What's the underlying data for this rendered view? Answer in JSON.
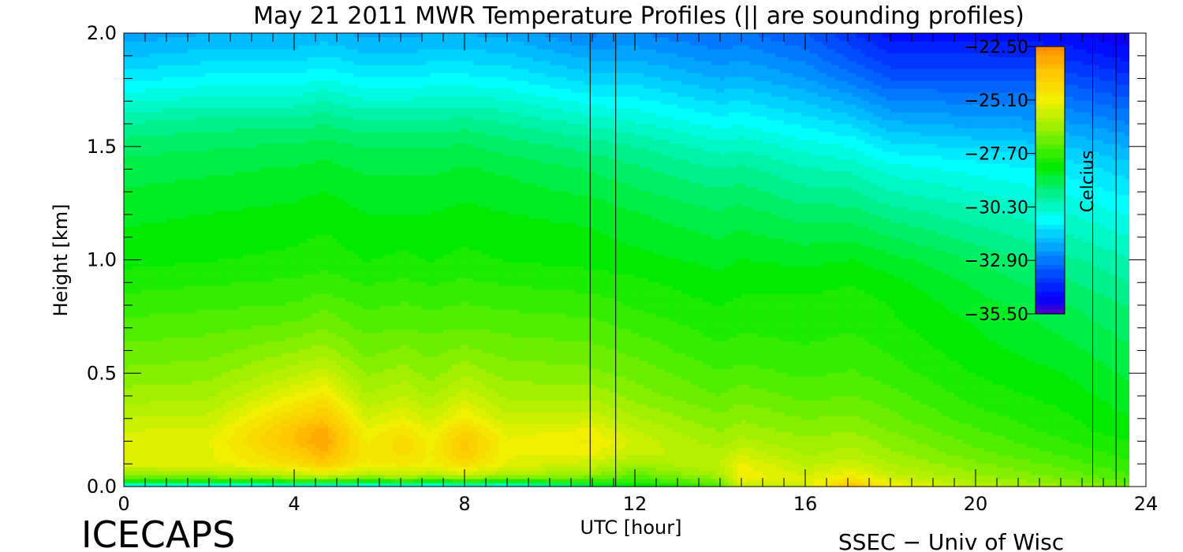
{
  "chart_data": {
    "type": "heatmap",
    "title": "May 21 2011 MWR Temperature Profiles (|| are sounding profiles)",
    "xlabel": "UTC [hour]",
    "ylabel": "Height [km]",
    "xlim": [
      0,
      24
    ],
    "ylim": [
      0,
      2.0
    ],
    "x_ticks": [
      0,
      4,
      8,
      12,
      16,
      20,
      24
    ],
    "y_ticks": [
      0.0,
      0.5,
      1.0,
      1.5,
      2.0
    ],
    "x_tick_labels": [
      "0",
      "4",
      "8",
      "12",
      "16",
      "20",
      "24"
    ],
    "y_tick_labels": [
      "0.0",
      "0.5",
      "1.0",
      "1.5",
      "2.0"
    ],
    "data_extent_hours": [
      0,
      23.6
    ],
    "colorbar": {
      "label": "Celcius",
      "range": [
        -35.5,
        -22.5
      ],
      "tick_values": [
        -22.5,
        -25.1,
        -27.7,
        -30.3,
        -32.9,
        -35.5
      ],
      "tick_labels": [
        "−22.50",
        "−25.10",
        "−27.70",
        "−30.30",
        "−32.90",
        "−35.50"
      ]
    },
    "sounding_times_hours": [
      10.95,
      11.55,
      22.75,
      23.3
    ],
    "heights_km": [
      0.0,
      0.02,
      0.05,
      0.1,
      0.15,
      0.2,
      0.25,
      0.3,
      0.4,
      0.5,
      0.6,
      0.7,
      0.8,
      0.9,
      1.0,
      1.2,
      1.4,
      1.5,
      1.6,
      1.7,
      1.8,
      1.9,
      2.0
    ],
    "profiles": [
      {
        "time": 0,
        "temps": [
          -31.5,
          -28.5,
          -26.5,
          -25.5,
          -25.4,
          -25.4,
          -25.6,
          -25.9,
          -26.4,
          -26.8,
          -27.1,
          -27.4,
          -27.7,
          -28.0,
          -28.3,
          -28.6,
          -29.0,
          -29.3,
          -29.8,
          -30.5,
          -31.2,
          -31.8,
          -32.3
        ]
      },
      {
        "time": 2,
        "temps": [
          -31.5,
          -28.5,
          -26.5,
          -25.4,
          -25.3,
          -25.3,
          -25.5,
          -25.8,
          -26.3,
          -26.7,
          -27.0,
          -27.3,
          -27.6,
          -27.9,
          -28.2,
          -28.5,
          -28.9,
          -29.2,
          -29.6,
          -30.3,
          -31.0,
          -31.6,
          -32.1
        ]
      },
      {
        "time": 4,
        "temps": [
          -31.5,
          -28.3,
          -26.0,
          -24.6,
          -24.0,
          -23.6,
          -23.7,
          -24.2,
          -25.2,
          -26.0,
          -26.6,
          -27.1,
          -27.5,
          -27.8,
          -28.1,
          -28.4,
          -28.8,
          -29.1,
          -29.6,
          -30.3,
          -31.0,
          -31.6,
          -32.1
        ]
      },
      {
        "time": 4.7,
        "temps": [
          -31.5,
          -28.2,
          -25.6,
          -24.0,
          -23.3,
          -23.0,
          -23.1,
          -23.7,
          -24.8,
          -25.7,
          -26.4,
          -26.9,
          -27.3,
          -27.7,
          -28.0,
          -28.3,
          -28.7,
          -29.0,
          -29.5,
          -30.1,
          -30.8,
          -31.4,
          -32.0
        ]
      },
      {
        "time": 5.7,
        "temps": [
          -31.5,
          -28.4,
          -26.2,
          -25.0,
          -24.9,
          -25.0,
          -25.2,
          -25.6,
          -26.2,
          -26.6,
          -27.0,
          -27.3,
          -27.6,
          -27.9,
          -28.2,
          -28.5,
          -28.9,
          -29.2,
          -29.7,
          -30.4,
          -31.1,
          -31.7,
          -32.2
        ]
      },
      {
        "time": 6.6,
        "temps": [
          -31.5,
          -28.3,
          -25.9,
          -24.8,
          -24.5,
          -24.4,
          -24.7,
          -25.2,
          -25.9,
          -26.4,
          -26.8,
          -27.2,
          -27.5,
          -27.8,
          -28.1,
          -28.5,
          -28.9,
          -29.2,
          -29.7,
          -30.4,
          -31.1,
          -31.7,
          -32.2
        ]
      },
      {
        "time": 7.2,
        "temps": [
          -31.5,
          -28.4,
          -26.2,
          -25.1,
          -25.0,
          -25.1,
          -25.3,
          -25.7,
          -26.3,
          -26.7,
          -27.0,
          -27.3,
          -27.6,
          -27.9,
          -28.2,
          -28.5,
          -28.9,
          -29.2,
          -29.7,
          -30.3,
          -31.0,
          -31.6,
          -32.1
        ]
      },
      {
        "time": 8.0,
        "temps": [
          -31.5,
          -28.3,
          -25.8,
          -24.4,
          -23.9,
          -23.8,
          -24.2,
          -24.9,
          -25.7,
          -26.3,
          -26.8,
          -27.2,
          -27.5,
          -27.8,
          -28.1,
          -28.4,
          -28.8,
          -29.1,
          -29.6,
          -30.3,
          -31.0,
          -31.6,
          -32.1
        ]
      },
      {
        "time": 9.0,
        "temps": [
          -31.5,
          -28.4,
          -26.3,
          -25.3,
          -25.2,
          -25.2,
          -25.4,
          -25.8,
          -26.3,
          -26.7,
          -27.0,
          -27.3,
          -27.6,
          -27.9,
          -28.2,
          -28.5,
          -28.9,
          -29.3,
          -29.8,
          -30.4,
          -31.1,
          -31.7,
          -32.2
        ]
      },
      {
        "time": 11.0,
        "temps": [
          -29.5,
          -28.0,
          -26.6,
          -25.8,
          -25.2,
          -24.9,
          -25.2,
          -25.7,
          -26.3,
          -26.8,
          -27.1,
          -27.4,
          -27.7,
          -28.0,
          -28.3,
          -28.6,
          -29.2,
          -29.6,
          -30.2,
          -30.9,
          -31.6,
          -32.2,
          -32.8
        ]
      },
      {
        "time": 12.0,
        "temps": [
          -28.8,
          -28.0,
          -27.2,
          -26.4,
          -25.8,
          -25.7,
          -25.9,
          -26.2,
          -26.7,
          -27.0,
          -27.3,
          -27.6,
          -27.9,
          -28.1,
          -28.4,
          -28.8,
          -29.4,
          -29.8,
          -30.4,
          -31.0,
          -31.6,
          -32.2,
          -32.7
        ]
      },
      {
        "time": 14.0,
        "temps": [
          -27.5,
          -27.0,
          -26.3,
          -25.9,
          -26.1,
          -26.4,
          -26.6,
          -26.8,
          -27.2,
          -27.5,
          -27.8,
          -28.0,
          -28.2,
          -28.4,
          -28.6,
          -29.1,
          -29.8,
          -30.3,
          -30.9,
          -31.5,
          -32.1,
          -32.6,
          -33.1
        ]
      },
      {
        "time": 14.5,
        "temps": [
          -26.0,
          -25.3,
          -25.0,
          -25.2,
          -25.7,
          -26.1,
          -26.4,
          -26.6,
          -27.0,
          -27.4,
          -27.7,
          -27.9,
          -28.1,
          -28.3,
          -28.5,
          -29.0,
          -29.7,
          -30.2,
          -30.8,
          -31.4,
          -32.0,
          -32.5,
          -33.0
        ]
      },
      {
        "time": 16.0,
        "temps": [
          -25.8,
          -25.5,
          -25.6,
          -26.0,
          -26.3,
          -26.5,
          -26.7,
          -26.9,
          -27.3,
          -27.6,
          -27.8,
          -28.0,
          -28.1,
          -28.3,
          -28.6,
          -29.3,
          -30.1,
          -30.6,
          -31.2,
          -31.8,
          -32.4,
          -32.9,
          -33.4
        ]
      },
      {
        "time": 17.1,
        "temps": [
          -23.5,
          -24.2,
          -25.0,
          -25.7,
          -26.1,
          -26.3,
          -26.6,
          -26.8,
          -27.2,
          -27.5,
          -27.7,
          -27.9,
          -28.0,
          -28.2,
          -28.5,
          -29.3,
          -30.2,
          -30.8,
          -31.5,
          -32.2,
          -32.9,
          -33.5,
          -34.0
        ]
      },
      {
        "time": 18.0,
        "temps": [
          -25.0,
          -25.3,
          -25.8,
          -26.2,
          -26.5,
          -26.7,
          -26.9,
          -27.1,
          -27.4,
          -27.7,
          -27.9,
          -28.1,
          -28.2,
          -28.4,
          -28.7,
          -29.6,
          -30.6,
          -31.3,
          -32.0,
          -32.7,
          -33.4,
          -34.0,
          -34.5
        ]
      },
      {
        "time": 20.0,
        "temps": [
          -26.0,
          -26.2,
          -26.5,
          -26.8,
          -27.1,
          -27.3,
          -27.5,
          -27.7,
          -28.0,
          -28.2,
          -28.4,
          -28.5,
          -28.7,
          -28.9,
          -29.2,
          -30.0,
          -30.9,
          -31.5,
          -32.2,
          -32.8,
          -33.4,
          -34.0,
          -34.5
        ]
      },
      {
        "time": 22.0,
        "temps": [
          -26.5,
          -26.7,
          -27.0,
          -27.3,
          -27.6,
          -27.8,
          -28.0,
          -28.1,
          -28.3,
          -28.5,
          -28.7,
          -28.9,
          -29.1,
          -29.4,
          -29.7,
          -30.4,
          -31.2,
          -31.7,
          -32.3,
          -32.9,
          -33.5,
          -34.1,
          -34.6
        ]
      },
      {
        "time": 23.6,
        "temps": [
          -27.0,
          -27.2,
          -27.5,
          -27.8,
          -28.0,
          -28.2,
          -28.4,
          -28.5,
          -28.7,
          -28.9,
          -29.1,
          -29.3,
          -29.5,
          -29.8,
          -30.1,
          -30.8,
          -31.6,
          -32.1,
          -32.7,
          -33.3,
          -33.9,
          -34.5,
          -35.0
        ]
      }
    ]
  },
  "footer": {
    "left_label": "ICECAPS",
    "right_label": "SSEC − Univ of Wisc"
  }
}
